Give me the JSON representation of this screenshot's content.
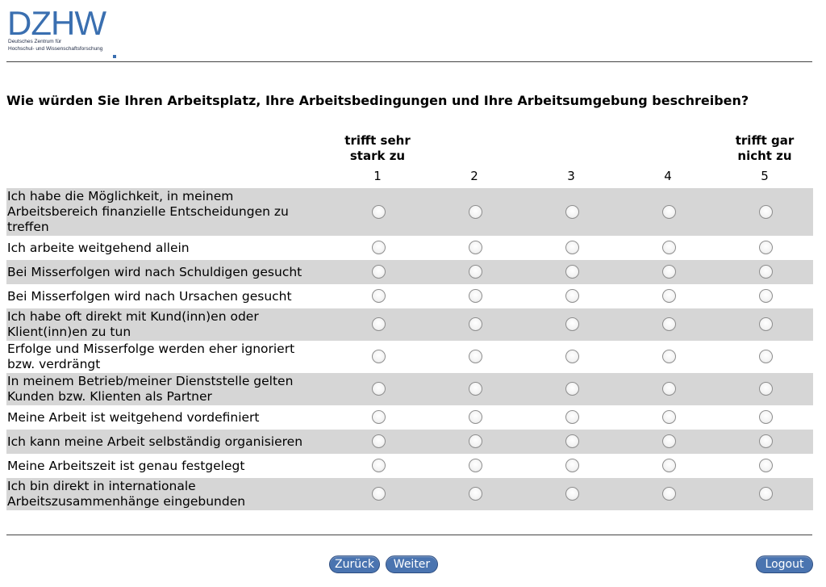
{
  "logo": {
    "word": "DZHW",
    "subtitle_line1": "Deutsches Zentrum für",
    "subtitle_line2": "Hochschul- und Wissenschaftsforschung",
    "color": "#3a6fb0"
  },
  "question": "Wie würden Sie Ihren Arbeitsplatz, Ihre Arbeitsbedingungen und Ihre Arbeitsumgebung beschreiben?",
  "scale": {
    "left_anchor": "trifft sehr stark zu",
    "right_anchor": "trifft gar nicht zu",
    "points": [
      "1",
      "2",
      "3",
      "4",
      "5"
    ]
  },
  "items": [
    "Ich habe die Möglichkeit, in meinem Arbeitsbereich finanzielle Entscheidungen zu treffen",
    "Ich arbeite weitgehend allein",
    "Bei Misserfolgen wird nach Schuldigen gesucht",
    "Bei Misserfolgen wird nach Ursachen gesucht",
    "Ich habe oft direkt mit Kund(inn)en oder Klient(inn)en zu tun",
    "Erfolge und Misserfolge werden eher ignoriert bzw. verdrängt",
    "In meinem Betrieb/meiner Dienststelle gelten Kunden bzw. Klienten als Partner",
    "Meine Arbeit ist weitgehend vordefiniert",
    "Ich kann meine Arbeit selbständig organisieren",
    "Meine Arbeitszeit ist genau festgelegt",
    "Ich bin direkt in internationale Arbeitszusammenhänge eingebunden"
  ],
  "buttons": {
    "back": "Zurück",
    "next": "Weiter",
    "logout": "Logout"
  },
  "colors": {
    "button": "#4a74b0",
    "row_shade": "#d6d6d6"
  }
}
